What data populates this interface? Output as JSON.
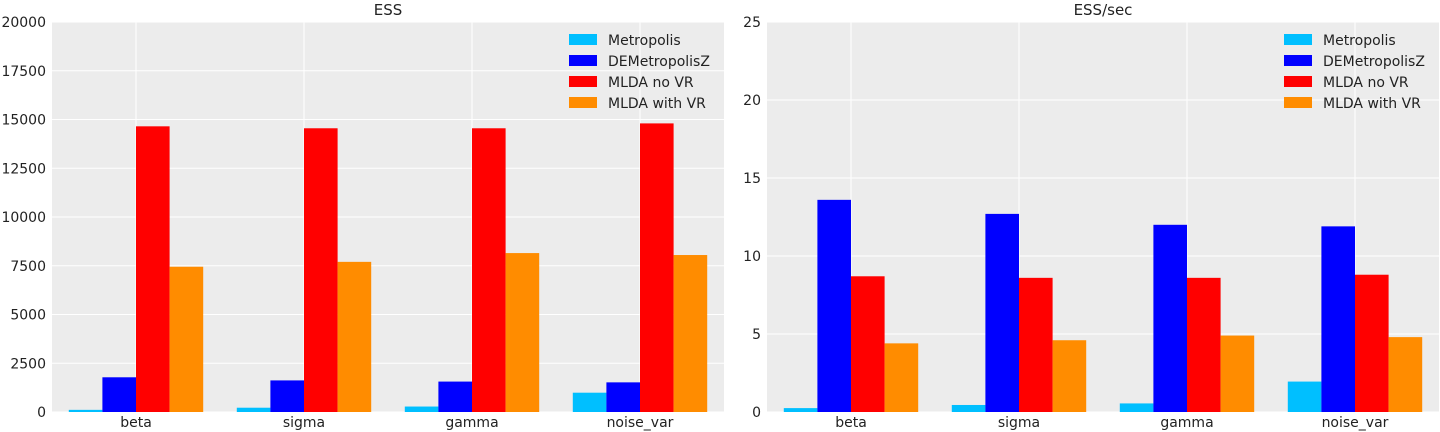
{
  "chart_data": [
    {
      "type": "bar",
      "title": "ESS",
      "categories": [
        "beta",
        "sigma",
        "gamma",
        "noise_var"
      ],
      "ylim": [
        0,
        20000
      ],
      "yticks": [
        0,
        2500,
        5000,
        7500,
        10000,
        12500,
        15000,
        17500,
        20000
      ],
      "grid": true,
      "legend_position": "top-right",
      "series": [
        {
          "name": "Metropolis",
          "color": "#00bfff",
          "values": [
            110,
            220,
            280,
            990
          ]
        },
        {
          "name": "DEMetropolisZ",
          "color": "#0000ff",
          "values": [
            1780,
            1620,
            1560,
            1520
          ]
        },
        {
          "name": "MLDA no VR",
          "color": "#ff0000",
          "values": [
            14650,
            14550,
            14550,
            14800
          ]
        },
        {
          "name": "MLDA with VR",
          "color": "#ff8c00",
          "values": [
            7450,
            7700,
            8150,
            8050
          ]
        }
      ]
    },
    {
      "type": "bar",
      "title": "ESS/sec",
      "categories": [
        "beta",
        "sigma",
        "gamma",
        "noise_var"
      ],
      "ylim": [
        0,
        25
      ],
      "yticks": [
        0,
        5,
        10,
        15,
        20,
        25
      ],
      "grid": true,
      "legend_position": "top-right",
      "series": [
        {
          "name": "Metropolis",
          "color": "#00bfff",
          "values": [
            0.25,
            0.45,
            0.55,
            1.95
          ]
        },
        {
          "name": "DEMetropolisZ",
          "color": "#0000ff",
          "values": [
            13.6,
            12.7,
            12.0,
            11.9
          ]
        },
        {
          "name": "MLDA no VR",
          "color": "#ff0000",
          "values": [
            8.7,
            8.6,
            8.6,
            8.8
          ]
        },
        {
          "name": "MLDA with VR",
          "color": "#ff8c00",
          "values": [
            4.4,
            4.6,
            4.9,
            4.8
          ]
        }
      ]
    }
  ]
}
